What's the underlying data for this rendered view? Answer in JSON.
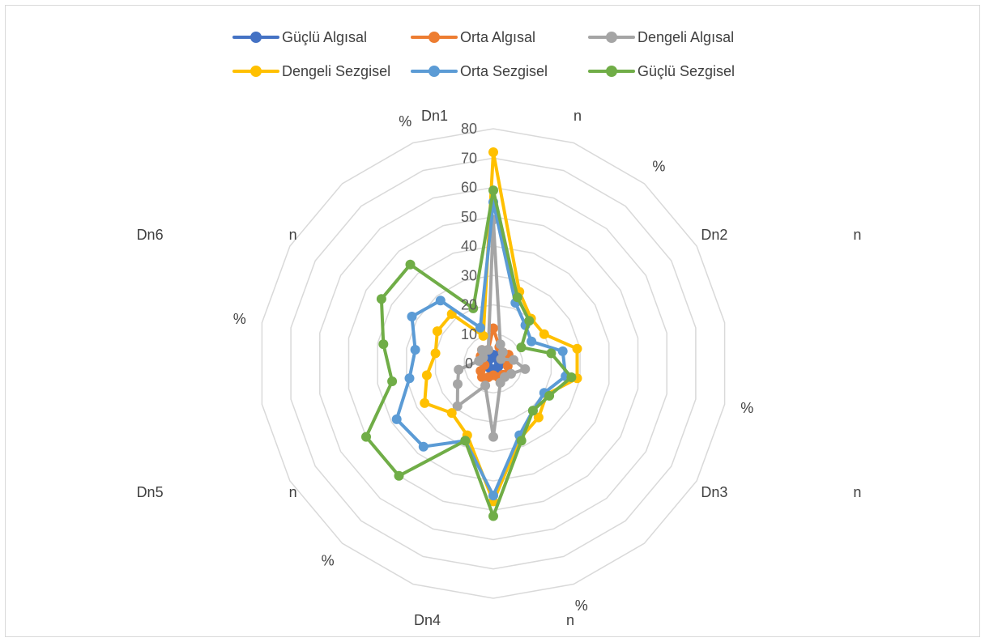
{
  "chart_data": {
    "type": "radar",
    "categories": [
      "Dn1",
      "n",
      "%",
      "Dn2",
      "n",
      "%",
      "Dn3",
      "n",
      "%",
      "Dn4",
      "n",
      "%",
      "Dn5",
      "n",
      "%",
      "Dn6",
      "n",
      "%"
    ],
    "category_labels": [
      "Dn1                               n",
      "%",
      "Dn2                               n",
      "%",
      "Dn3                               n",
      "%",
      "Dn4                               n",
      "%",
      "Dn5                               n",
      "%",
      "Dn6                               n",
      "%"
    ],
    "rlim": [
      0,
      80
    ],
    "r_ticks": [
      0,
      10,
      20,
      30,
      40,
      50,
      60,
      70,
      80
    ],
    "grid": true,
    "legend_position": "top",
    "series": [
      {
        "name": "Güçlü Algısal",
        "color": "#4472c4",
        "values": [
          3,
          3,
          3,
          2,
          2,
          2,
          2,
          2,
          2,
          2,
          2,
          2,
          2,
          2,
          2,
          2,
          2,
          2
        ]
      },
      {
        "name": "Orta Algısal",
        "color": "#ed7d31",
        "values": [
          12,
          6,
          5,
          6,
          5,
          5,
          6,
          5,
          5,
          4,
          5,
          6,
          5,
          3,
          4,
          5,
          6,
          5
        ]
      },
      {
        "name": "Dengeli Algısal",
        "color": "#a5a5a5",
        "values": [
          49,
          7,
          5,
          3,
          7,
          11,
          7,
          6,
          7,
          25,
          8,
          19,
          14,
          12,
          5,
          4,
          6,
          5
        ]
      },
      {
        "name": "Dengeli Sezgisel",
        "color": "#ffc000",
        "values": [
          72,
          26,
          20,
          20,
          29,
          29,
          21,
          24,
          27,
          47,
          26,
          22,
          27,
          23,
          20,
          22,
          22,
          10
        ]
      },
      {
        "name": "Orta Sezgisel",
        "color": "#5b9bd5",
        "values": [
          55,
          22,
          17,
          15,
          24,
          25,
          20,
          21,
          26,
          45,
          28,
          37,
          38,
          29,
          27,
          32,
          28,
          13
        ]
      },
      {
        "name": "Güçlü Sezgisel",
        "color": "#70ad47",
        "values": [
          59,
          24,
          19,
          11,
          20,
          27,
          22,
          21,
          28,
          52,
          28,
          50,
          50,
          35,
          38,
          44,
          44,
          20
        ]
      }
    ]
  }
}
